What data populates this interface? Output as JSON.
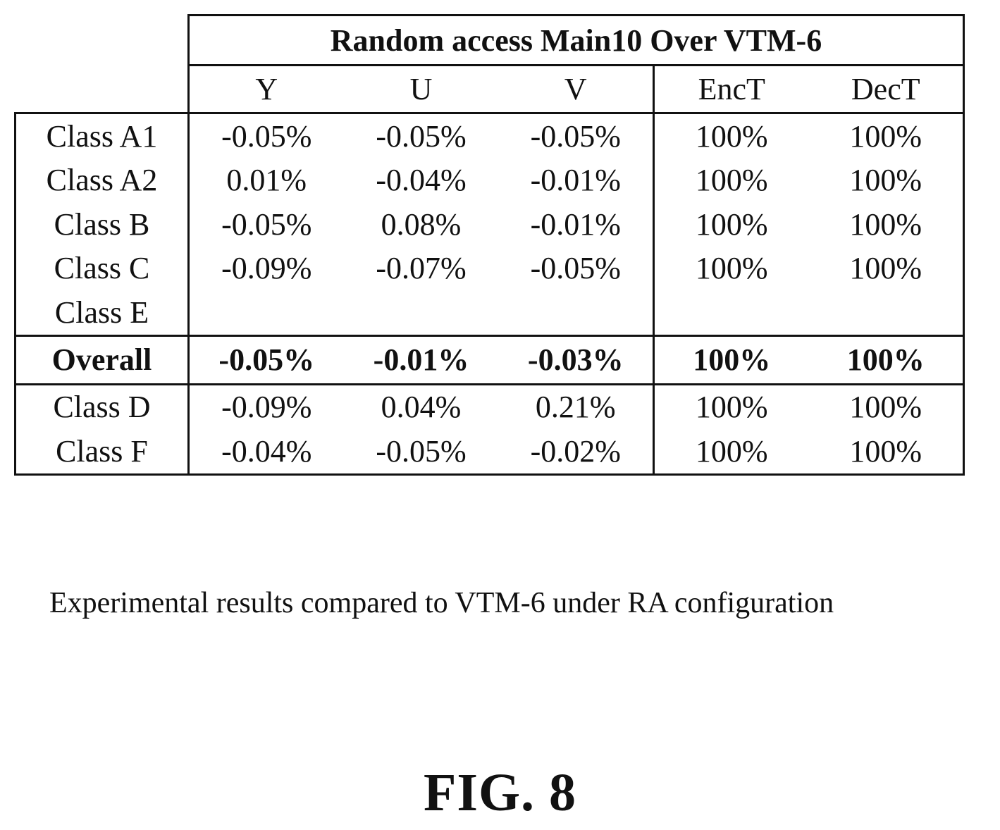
{
  "table": {
    "title": "Random access Main10 Over VTM-6",
    "columns": [
      "Y",
      "U",
      "V",
      "EncT",
      "DecT"
    ],
    "rows": [
      {
        "label": "Class A1",
        "values": [
          "-0.05%",
          "-0.05%",
          "-0.05%",
          "100%",
          "100%"
        ]
      },
      {
        "label": "Class A2",
        "values": [
          "0.01%",
          "-0.04%",
          "-0.01%",
          "100%",
          "100%"
        ]
      },
      {
        "label": "Class B",
        "values": [
          "-0.05%",
          "0.08%",
          "-0.01%",
          "100%",
          "100%"
        ]
      },
      {
        "label": "Class C",
        "values": [
          "-0.09%",
          "-0.07%",
          "-0.05%",
          "100%",
          "100%"
        ]
      },
      {
        "label": "Class E",
        "values": [
          "",
          "",
          "",
          "",
          ""
        ]
      }
    ],
    "overall": {
      "label": "Overall",
      "values": [
        "-0.05%",
        "-0.01%",
        "-0.03%",
        "100%",
        "100%"
      ]
    },
    "extra_rows": [
      {
        "label": "Class D",
        "values": [
          "-0.09%",
          "0.04%",
          "0.21%",
          "100%",
          "100%"
        ]
      },
      {
        "label": "Class F",
        "values": [
          "-0.04%",
          "-0.05%",
          "-0.02%",
          "100%",
          "100%"
        ]
      }
    ]
  },
  "caption": "Experimental results compared to VTM-6 under RA configuration",
  "figure_label": "FIG. 8"
}
